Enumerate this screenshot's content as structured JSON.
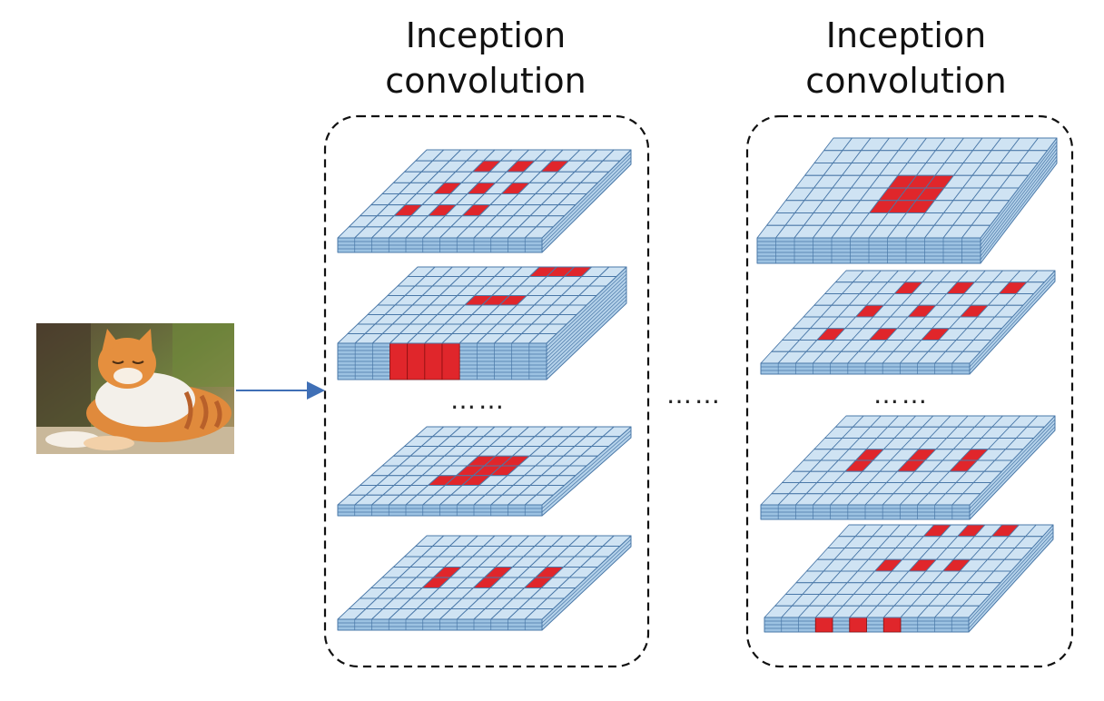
{
  "blocks": [
    {
      "title_line1": "Inception",
      "title_line2": "convolution",
      "dots": "……"
    },
    {
      "title_line1": "Inception",
      "title_line2": "convolution",
      "dots": "……"
    }
  ],
  "between_dots": "……",
  "input_image": {
    "subject": "cat photo"
  },
  "colors": {
    "cell_top": "#cfe3f3",
    "cell_edge": "#4a78a8",
    "cell_side": "#9cc2e2",
    "active": "#e0262b",
    "arrow": "#3f6fb6",
    "border": "#111111"
  }
}
